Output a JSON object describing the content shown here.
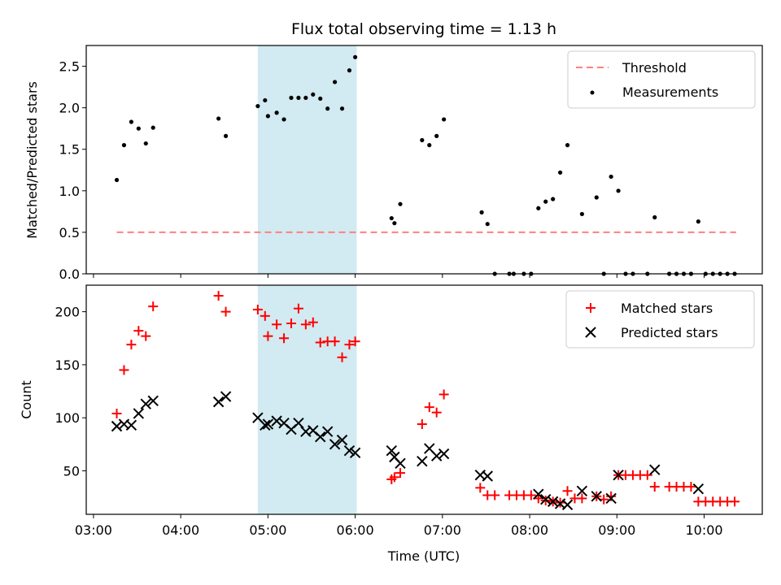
{
  "chart_data": [
    {
      "type": "scatter",
      "title": "Flux total observing time = 1.13 h",
      "xlabel": "",
      "ylabel": "Matched/Predicted stars",
      "ylim": [
        0,
        2.75
      ],
      "yticks": [
        0.0,
        0.5,
        1.0,
        1.5,
        2.0,
        2.5
      ],
      "ytick_labels": [
        "0.0",
        "0.5",
        "1.0",
        "1.5",
        "2.0",
        "2.5"
      ],
      "highlight_span": [
        "04:53",
        "06:01"
      ],
      "highlight_color": "#add8e6",
      "threshold": {
        "name": "Threshold",
        "value": 0.5,
        "x_start": "03:16",
        "x_end": "10:22",
        "color": "#ff7f7f"
      },
      "series": [
        {
          "name": "Measurements",
          "color": "#000000",
          "points": [
            [
              "03:16",
              1.13
            ],
            [
              "03:21",
              1.55
            ],
            [
              "03:26",
              1.83
            ],
            [
              "03:31",
              1.75
            ],
            [
              "03:36",
              1.57
            ],
            [
              "03:41",
              1.76
            ],
            [
              "04:26",
              1.87
            ],
            [
              "04:31",
              1.66
            ],
            [
              "04:53",
              2.02
            ],
            [
              "04:58",
              2.09
            ],
            [
              "05:00",
              1.9
            ],
            [
              "05:06",
              1.94
            ],
            [
              "05:11",
              1.86
            ],
            [
              "05:16",
              2.12
            ],
            [
              "05:21",
              2.12
            ],
            [
              "05:26",
              2.12
            ],
            [
              "05:31",
              2.16
            ],
            [
              "05:36",
              2.11
            ],
            [
              "05:41",
              1.99
            ],
            [
              "05:46",
              2.31
            ],
            [
              "05:51",
              1.99
            ],
            [
              "05:56",
              2.45
            ],
            [
              "06:00",
              2.61
            ],
            [
              "06:25",
              0.67
            ],
            [
              "06:27",
              0.61
            ],
            [
              "06:31",
              0.84
            ],
            [
              "06:46",
              1.61
            ],
            [
              "06:51",
              1.55
            ],
            [
              "06:56",
              1.66
            ],
            [
              "07:01",
              1.86
            ],
            [
              "07:27",
              0.74
            ],
            [
              "07:31",
              0.6
            ],
            [
              "07:36",
              0.0
            ],
            [
              "07:46",
              0.0
            ],
            [
              "07:49",
              0.0
            ],
            [
              "07:56",
              0.0
            ],
            [
              "08:01",
              0.0
            ],
            [
              "08:06",
              0.79
            ],
            [
              "08:11",
              0.87
            ],
            [
              "08:16",
              0.9
            ],
            [
              "08:21",
              1.22
            ],
            [
              "08:26",
              1.55
            ],
            [
              "08:36",
              0.72
            ],
            [
              "08:46",
              0.92
            ],
            [
              "08:51",
              0.0
            ],
            [
              "08:56",
              1.17
            ],
            [
              "09:01",
              1.0
            ],
            [
              "09:06",
              0.0
            ],
            [
              "09:11",
              0.0
            ],
            [
              "09:21",
              0.0
            ],
            [
              "09:26",
              0.68
            ],
            [
              "09:36",
              0.0
            ],
            [
              "09:41",
              0.0
            ],
            [
              "09:46",
              0.0
            ],
            [
              "09:51",
              0.0
            ],
            [
              "09:56",
              0.63
            ],
            [
              "10:01",
              0.0
            ],
            [
              "10:06",
              0.0
            ],
            [
              "10:11",
              0.0
            ],
            [
              "10:16",
              0.0
            ],
            [
              "10:21",
              0.0
            ]
          ]
        }
      ],
      "legend": {
        "placement": "top-right",
        "entries": [
          "Threshold",
          "Measurements"
        ]
      },
      "grid": false
    },
    {
      "type": "scatter",
      "title": "",
      "xlabel": "Time (UTC)",
      "ylabel": "Count",
      "ylim": [
        9,
        225
      ],
      "yticks": [
        50,
        100,
        150,
        200
      ],
      "ytick_labels": [
        "50",
        "100",
        "150",
        "200"
      ],
      "xlim": [
        "02:55",
        "10:40"
      ],
      "xticks": [
        "03:00",
        "04:00",
        "05:00",
        "06:00",
        "07:00",
        "08:00",
        "09:00",
        "10:00"
      ],
      "xtick_labels": [
        "03:00",
        "04:00",
        "05:00",
        "06:00",
        "07:00",
        "08:00",
        "09:00",
        "10:00"
      ],
      "highlight_span": [
        "04:53",
        "06:01"
      ],
      "highlight_color": "#add8e6",
      "series": [
        {
          "name": "Matched stars",
          "color": "#ff0000",
          "marker": "plus",
          "points": [
            [
              "03:16",
              104
            ],
            [
              "03:21",
              145
            ],
            [
              "03:26",
              169
            ],
            [
              "03:31",
              182
            ],
            [
              "03:36",
              177
            ],
            [
              "03:41",
              205
            ],
            [
              "04:26",
              215
            ],
            [
              "04:31",
              200
            ],
            [
              "04:53",
              202
            ],
            [
              "04:58",
              196
            ],
            [
              "05:00",
              177
            ],
            [
              "05:06",
              188
            ],
            [
              "05:11",
              175
            ],
            [
              "05:16",
              189
            ],
            [
              "05:21",
              203
            ],
            [
              "05:26",
              188
            ],
            [
              "05:31",
              190
            ],
            [
              "05:36",
              171
            ],
            [
              "05:41",
              172
            ],
            [
              "05:46",
              172
            ],
            [
              "05:51",
              157
            ],
            [
              "05:56",
              169
            ],
            [
              "06:00",
              172
            ],
            [
              "06:25",
              42
            ],
            [
              "06:27",
              44
            ],
            [
              "06:31",
              48
            ],
            [
              "06:46",
              94
            ],
            [
              "06:51",
              110
            ],
            [
              "06:56",
              105
            ],
            [
              "07:01",
              122
            ],
            [
              "07:26",
              34
            ],
            [
              "07:31",
              27
            ],
            [
              "07:36",
              27
            ],
            [
              "07:46",
              27
            ],
            [
              "07:51",
              27
            ],
            [
              "07:56",
              27
            ],
            [
              "08:01",
              27
            ],
            [
              "08:06",
              24
            ],
            [
              "08:11",
              22
            ],
            [
              "08:16",
              21
            ],
            [
              "08:21",
              20
            ],
            [
              "08:26",
              31
            ],
            [
              "08:31",
              24
            ],
            [
              "08:36",
              24
            ],
            [
              "08:46",
              26
            ],
            [
              "08:51",
              23
            ],
            [
              "08:56",
              26
            ],
            [
              "09:01",
              46
            ],
            [
              "09:06",
              46
            ],
            [
              "09:11",
              46
            ],
            [
              "09:16",
              46
            ],
            [
              "09:21",
              46
            ],
            [
              "09:26",
              35
            ],
            [
              "09:36",
              35
            ],
            [
              "09:41",
              35
            ],
            [
              "09:46",
              35
            ],
            [
              "09:51",
              35
            ],
            [
              "09:56",
              21
            ],
            [
              "10:01",
              21
            ],
            [
              "10:06",
              21
            ],
            [
              "10:11",
              21
            ],
            [
              "10:16",
              21
            ],
            [
              "10:21",
              21
            ]
          ]
        },
        {
          "name": "Predicted stars",
          "color": "#000000",
          "marker": "x",
          "points": [
            [
              "03:16",
              92
            ],
            [
              "03:21",
              94
            ],
            [
              "03:26",
              93
            ],
            [
              "03:31",
              104
            ],
            [
              "03:36",
              113
            ],
            [
              "03:41",
              116
            ],
            [
              "04:26",
              115
            ],
            [
              "04:31",
              120
            ],
            [
              "04:53",
              100
            ],
            [
              "04:58",
              93
            ],
            [
              "05:00",
              94
            ],
            [
              "05:06",
              97
            ],
            [
              "05:11",
              95
            ],
            [
              "05:16",
              89
            ],
            [
              "05:21",
              95
            ],
            [
              "05:26",
              87
            ],
            [
              "05:31",
              88
            ],
            [
              "05:36",
              82
            ],
            [
              "05:41",
              87
            ],
            [
              "05:46",
              75
            ],
            [
              "05:51",
              79
            ],
            [
              "05:56",
              69
            ],
            [
              "06:00",
              67
            ],
            [
              "06:25",
              69
            ],
            [
              "06:27",
              63
            ],
            [
              "06:31",
              57
            ],
            [
              "06:46",
              59
            ],
            [
              "06:51",
              71
            ],
            [
              "06:56",
              64
            ],
            [
              "07:01",
              66
            ],
            [
              "07:26",
              46
            ],
            [
              "07:31",
              45
            ],
            [
              "08:06",
              28
            ],
            [
              "08:11",
              23
            ],
            [
              "08:16",
              21
            ],
            [
              "08:21",
              19
            ],
            [
              "08:26",
              18
            ],
            [
              "08:36",
              31
            ],
            [
              "08:46",
              26
            ],
            [
              "08:56",
              24
            ],
            [
              "09:01",
              46
            ],
            [
              "09:26",
              51
            ],
            [
              "09:56",
              33
            ]
          ]
        }
      ],
      "legend": {
        "placement": "top-right",
        "entries": [
          "Matched stars",
          "Predicted stars"
        ]
      },
      "grid": false
    }
  ]
}
